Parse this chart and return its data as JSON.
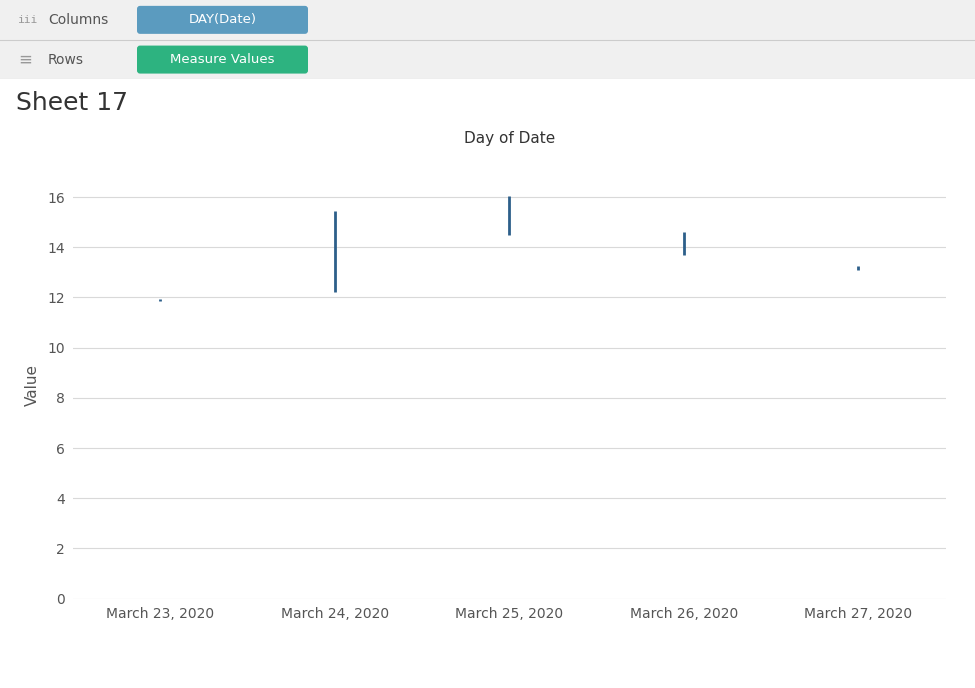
{
  "title": "Sheet 17",
  "xlabel": "Day of Date",
  "ylabel": "Value",
  "ylim": [
    0,
    17
  ],
  "yticks": [
    0,
    2,
    4,
    6,
    8,
    10,
    12,
    14,
    16
  ],
  "background_color": "#ffffff",
  "header_bg": "#f0f0f0",
  "columns_label": "Columns",
  "rows_label": "Rows",
  "columns_pill": "DAY(Date)",
  "columns_pill_color": "#5b9bbf",
  "rows_pill": "Measure Values",
  "rows_pill_color": "#2db380",
  "candlesticks": [
    {
      "date": "March 23, 2020",
      "x": 0,
      "low": 11.85,
      "high": 11.95
    },
    {
      "date": "March 24, 2020",
      "x": 1,
      "low": 12.2,
      "high": 15.45
    },
    {
      "date": "March 25, 2020",
      "x": 2,
      "low": 14.5,
      "high": 16.05
    },
    {
      "date": "March 26, 2020",
      "x": 3,
      "low": 13.7,
      "high": 14.6
    },
    {
      "date": "March 27, 2020",
      "x": 4,
      "low": 13.1,
      "high": 13.25
    }
  ],
  "line_color": "#2d5f8a",
  "line_width": 2.0,
  "grid_color": "#d9d9d9",
  "title_fontsize": 18,
  "axis_label_fontsize": 11,
  "tick_fontsize": 10,
  "xlabel_fontsize": 11,
  "header_separator_color": "#cccccc",
  "chart_separator_color": "#cccccc"
}
